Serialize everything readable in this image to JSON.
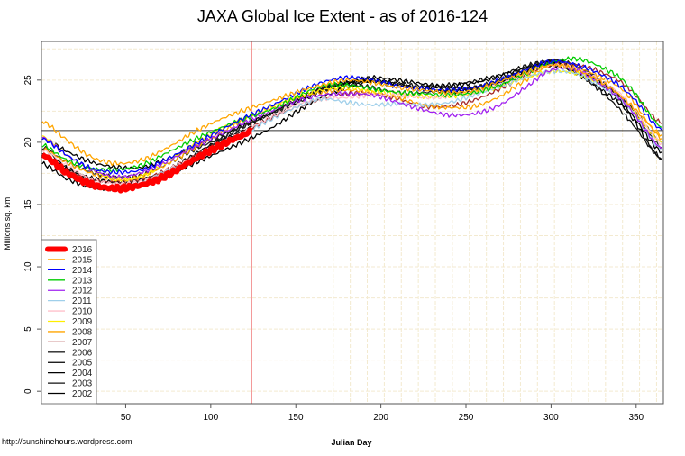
{
  "chart_data": {
    "type": "line",
    "title": "JAXA Global Ice Extent - as of 2016-124",
    "xlabel": "Julian Day",
    "ylabel": "Millions sq. km.",
    "xlim": [
      0.5,
      366
    ],
    "ylim": [
      -1,
      28.1
    ],
    "xticks": [
      50,
      100,
      150,
      200,
      250,
      300,
      350
    ],
    "yticks": [
      0,
      5,
      10,
      15,
      20,
      25
    ],
    "grid": {
      "horizontal_step": 2.5,
      "vertical_from_day": 172,
      "vertical_step_days": 10
    },
    "reference_lines": {
      "vertical_day": 124,
      "vertical_color": "#f08080",
      "horizontal_value": 20.94,
      "horizontal_color": "#333333"
    },
    "legend_position": "bottom-left",
    "footer": "http://sunshinehours.wordpress.com",
    "days": [
      1,
      15,
      30,
      45,
      60,
      75,
      90,
      105,
      120,
      135,
      150,
      165,
      180,
      195,
      210,
      225,
      240,
      255,
      270,
      285,
      300,
      315,
      330,
      345,
      365
    ],
    "series": [
      {
        "name": "2016",
        "color": "#ff0000",
        "width": 6,
        "values": [
          19.0,
          17.6,
          16.6,
          16.3,
          16.6,
          17.4,
          18.6,
          19.7,
          20.6,
          20.9
        ],
        "days": [
          1,
          15,
          30,
          45,
          60,
          75,
          90,
          105,
          120,
          124
        ]
      },
      {
        "name": "2015",
        "color": "#ffa500",
        "width": 1.3,
        "values": [
          21.7,
          20.2,
          18.8,
          18.3,
          18.6,
          19.6,
          20.8,
          21.8,
          22.6,
          23.3,
          24.0,
          24.6,
          25.0,
          24.8,
          24.4,
          24.2,
          24.0,
          24.2,
          24.9,
          25.6,
          26.2,
          25.8,
          24.8,
          23.2,
          20.6
        ]
      },
      {
        "name": "2014",
        "color": "#0000ff",
        "width": 1.3,
        "values": [
          20.3,
          19.0,
          17.9,
          17.6,
          17.8,
          18.7,
          19.8,
          20.9,
          22.0,
          22.9,
          23.9,
          24.8,
          25.2,
          25.0,
          24.5,
          24.3,
          24.2,
          24.4,
          25.0,
          25.8,
          26.5,
          26.2,
          25.4,
          24.0,
          21.0
        ]
      },
      {
        "name": "2013",
        "color": "#00cc00",
        "width": 1.3,
        "values": [
          19.8,
          18.6,
          17.9,
          17.8,
          18.2,
          19.2,
          20.2,
          21.1,
          21.9,
          22.6,
          23.6,
          24.5,
          24.6,
          24.3,
          24.0,
          23.9,
          23.8,
          24.0,
          24.6,
          25.5,
          26.4,
          26.7,
          26.0,
          24.6,
          21.2
        ]
      },
      {
        "name": "2012",
        "color": "#a020f0",
        "width": 1.3,
        "values": [
          20.4,
          19.0,
          17.8,
          17.2,
          17.6,
          18.5,
          19.6,
          20.6,
          21.6,
          22.5,
          23.3,
          23.8,
          23.9,
          23.8,
          23.2,
          22.6,
          22.2,
          22.3,
          23.0,
          24.4,
          25.8,
          25.8,
          24.6,
          22.9,
          19.5
        ]
      },
      {
        "name": "2011",
        "color": "#9fcfea",
        "width": 1.3,
        "values": [
          18.9,
          17.6,
          16.6,
          16.4,
          16.8,
          17.7,
          18.6,
          19.6,
          20.7,
          21.8,
          22.8,
          23.5,
          23.2,
          23.0,
          23.1,
          23.0,
          23.2,
          23.8,
          24.5,
          25.2,
          25.7,
          25.5,
          24.4,
          22.9,
          19.4
        ]
      },
      {
        "name": "2010",
        "color": "#ffc0cb",
        "width": 1.3,
        "values": [
          19.4,
          18.2,
          17.0,
          16.7,
          16.9,
          17.8,
          18.8,
          19.8,
          20.9,
          22.0,
          23.0,
          23.5,
          23.6,
          23.8,
          23.8,
          23.6,
          23.7,
          24.0,
          24.7,
          25.5,
          26.2,
          25.9,
          24.9,
          23.3,
          19.9
        ]
      },
      {
        "name": "2009",
        "color": "#ffee00",
        "width": 1.3,
        "values": [
          20.5,
          19.0,
          17.8,
          17.0,
          17.3,
          18.5,
          19.9,
          21.0,
          22.0,
          22.8,
          23.6,
          24.2,
          24.4,
          24.1,
          23.9,
          23.7,
          23.7,
          24.0,
          24.5,
          25.2,
          25.7,
          25.5,
          24.6,
          23.0,
          20.0
        ]
      },
      {
        "name": "2008",
        "color": "#ffa500",
        "width": 1.3,
        "values": [
          19.5,
          18.4,
          17.5,
          17.0,
          17.3,
          18.3,
          19.5,
          20.7,
          21.8,
          22.7,
          23.5,
          24.0,
          24.2,
          24.0,
          23.6,
          23.0,
          22.8,
          22.9,
          23.7,
          25.0,
          26.2,
          26.0,
          25.2,
          23.8,
          20.3
        ]
      },
      {
        "name": "2007",
        "color": "#a52a2a",
        "width": 1.3,
        "values": [
          18.9,
          17.8,
          17.0,
          16.8,
          17.0,
          17.8,
          18.9,
          19.9,
          20.9,
          21.9,
          22.8,
          23.5,
          23.9,
          23.9,
          23.5,
          22.9,
          22.9,
          23.4,
          24.3,
          25.4,
          26.2,
          26.2,
          25.6,
          24.4,
          21.5
        ]
      },
      {
        "name": "2006",
        "color": "#222222",
        "width": 1.3,
        "values": [
          19.6,
          18.4,
          17.6,
          17.2,
          17.4,
          18.3,
          19.4,
          20.3,
          21.3,
          22.3,
          23.3,
          24.2,
          24.6,
          24.4,
          24.0,
          24.0,
          24.2,
          24.4,
          25.0,
          25.9,
          26.6,
          26.1,
          24.9,
          23.0,
          19.6
        ]
      },
      {
        "name": "2005",
        "color": "#000000",
        "width": 1.3,
        "values": [
          20.3,
          19.3,
          18.4,
          18.0,
          18.0,
          18.7,
          19.6,
          20.5,
          21.4,
          22.3,
          23.4,
          24.3,
          24.8,
          24.9,
          24.5,
          24.4,
          24.5,
          24.8,
          25.3,
          26.0,
          26.4,
          25.9,
          24.8,
          23.1,
          20.0
        ]
      },
      {
        "name": "2004",
        "color": "#000000",
        "width": 1.3,
        "values": [
          19.1,
          17.9,
          17.1,
          16.8,
          17.0,
          17.8,
          18.9,
          20.0,
          21.0,
          22.0,
          23.1,
          24.1,
          24.7,
          25.2,
          25.0,
          24.7,
          24.4,
          24.4,
          24.9,
          25.8,
          26.5,
          26.0,
          24.6,
          22.6,
          19.2
        ]
      },
      {
        "name": "2003",
        "color": "#111111",
        "width": 1.3,
        "values": [
          19.5,
          18.0,
          17.1,
          16.8,
          17.0,
          17.8,
          19.0,
          20.2,
          21.3,
          22.3,
          23.3,
          24.3,
          24.8,
          25.0,
          24.7,
          24.5,
          24.6,
          24.9,
          25.4,
          26.1,
          26.5,
          25.6,
          24.0,
          21.9,
          18.7
        ]
      },
      {
        "name": "2002",
        "color": "#000000",
        "width": 1.3,
        "values": [
          18.3,
          17.1,
          16.4,
          16.3,
          16.6,
          17.4,
          18.3,
          19.2,
          20.1,
          21.1,
          22.4,
          23.6,
          24.4,
          24.9,
          24.7,
          24.3,
          24.1,
          24.2,
          24.7,
          25.6,
          26.2,
          25.5,
          24.2,
          22.4,
          18.6
        ]
      }
    ]
  }
}
